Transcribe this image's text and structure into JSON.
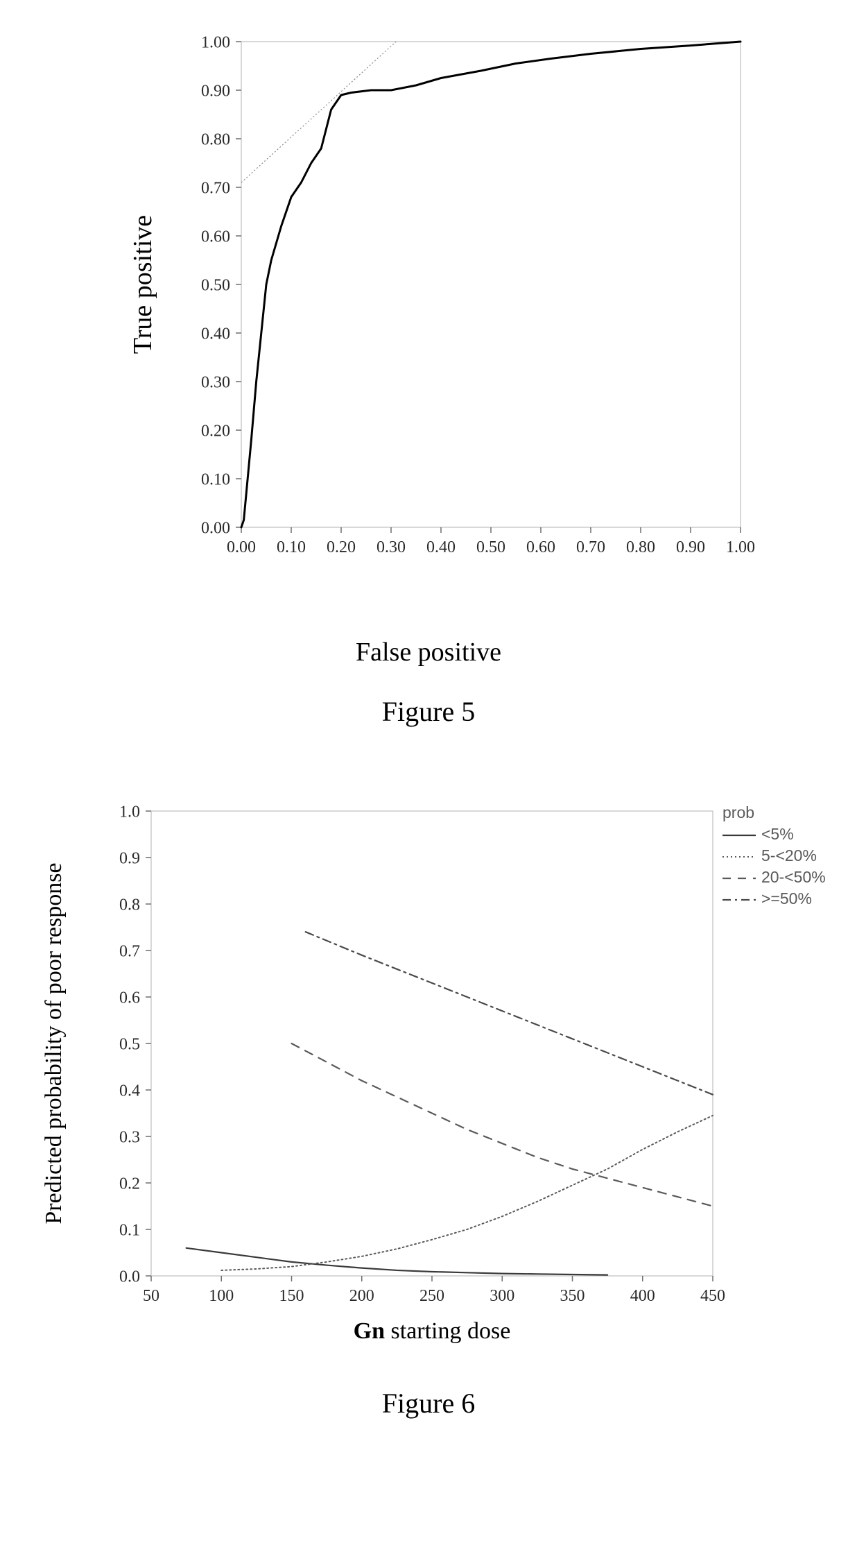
{
  "figure5": {
    "type": "line",
    "caption": "Figure 5",
    "xlabel": "False positive",
    "ylabel": "True positive",
    "xlim": [
      0.0,
      1.0
    ],
    "ylim": [
      0.0,
      1.0
    ],
    "xticks": [
      0.0,
      0.1,
      0.2,
      0.3,
      0.4,
      0.5,
      0.6,
      0.7,
      0.8,
      0.9,
      1.0
    ],
    "yticks": [
      0.0,
      0.1,
      0.2,
      0.3,
      0.4,
      0.5,
      0.6,
      0.7,
      0.8,
      0.9,
      1.0
    ],
    "xtick_labels": [
      "0.00",
      "0.10",
      "0.20",
      "0.30",
      "0.40",
      "0.50",
      "0.60",
      "0.70",
      "0.80",
      "0.90",
      "1.00"
    ],
    "ytick_labels": [
      "0.00",
      "0.10",
      "0.20",
      "0.30",
      "0.40",
      "0.50",
      "0.60",
      "0.70",
      "0.80",
      "0.90",
      "1.00"
    ],
    "background_color": "#ffffff",
    "frame_color": "#bfbfbf",
    "frame_width": 1.2,
    "tick_color": "#6e6e6e",
    "tick_len": 8,
    "tick_label_fontsize": 24,
    "axis_label_fontsize": 38,
    "roc": {
      "color": "#000000",
      "width": 3.0,
      "points": [
        [
          0.0,
          0.0
        ],
        [
          0.005,
          0.015
        ],
        [
          0.02,
          0.18
        ],
        [
          0.03,
          0.3
        ],
        [
          0.04,
          0.4
        ],
        [
          0.05,
          0.5
        ],
        [
          0.06,
          0.55
        ],
        [
          0.08,
          0.62
        ],
        [
          0.1,
          0.68
        ],
        [
          0.12,
          0.71
        ],
        [
          0.13,
          0.73
        ],
        [
          0.14,
          0.75
        ],
        [
          0.16,
          0.78
        ],
        [
          0.17,
          0.82
        ],
        [
          0.18,
          0.86
        ],
        [
          0.2,
          0.89
        ],
        [
          0.22,
          0.895
        ],
        [
          0.26,
          0.9
        ],
        [
          0.3,
          0.9
        ],
        [
          0.35,
          0.91
        ],
        [
          0.4,
          0.925
        ],
        [
          0.48,
          0.94
        ],
        [
          0.55,
          0.955
        ],
        [
          0.62,
          0.965
        ],
        [
          0.7,
          0.975
        ],
        [
          0.8,
          0.985
        ],
        [
          0.9,
          0.992
        ],
        [
          1.0,
          1.0
        ]
      ]
    },
    "tangent": {
      "color": "#8a8a8a",
      "width": 1.2,
      "dash": "2,3",
      "p1": [
        0.0,
        0.71
      ],
      "p2": [
        0.31,
        1.0
      ]
    }
  },
  "figure6": {
    "type": "line",
    "caption": "Figure 6",
    "xlabel_prefix_bold": "Gn",
    "xlabel_rest": " starting dose",
    "ylabel": "Predicted probability of poor response",
    "xlim": [
      50,
      450
    ],
    "ylim": [
      0.0,
      1.0
    ],
    "xticks": [
      50,
      100,
      150,
      200,
      250,
      300,
      350,
      400,
      450
    ],
    "yticks": [
      0.0,
      0.1,
      0.2,
      0.3,
      0.4,
      0.5,
      0.6,
      0.7,
      0.8,
      0.9,
      1.0
    ],
    "xtick_labels": [
      "50",
      "100",
      "150",
      "200",
      "250",
      "300",
      "350",
      "400",
      "450"
    ],
    "ytick_labels": [
      "0.0",
      "0.1",
      "0.2",
      "0.3",
      "0.4",
      "0.5",
      "0.6",
      "0.7",
      "0.8",
      "0.9",
      "1.0"
    ],
    "background_color": "#ffffff",
    "frame_color": "#bfbfbf",
    "frame_width": 1.2,
    "tick_color": "#6e6e6e",
    "tick_len": 8,
    "tick_label_fontsize": 24,
    "axis_label_fontsize": 34,
    "legend_title": "prob",
    "legend_fontsize": 23,
    "legend_color": "#5a5a5a",
    "series": [
      {
        "name": "<5%",
        "color": "#3a3a3a",
        "width": 2.2,
        "dash": null,
        "points": [
          [
            75,
            0.06
          ],
          [
            100,
            0.05
          ],
          [
            125,
            0.04
          ],
          [
            150,
            0.03
          ],
          [
            175,
            0.023
          ],
          [
            200,
            0.017
          ],
          [
            225,
            0.012
          ],
          [
            250,
            0.009
          ],
          [
            275,
            0.007
          ],
          [
            300,
            0.005
          ],
          [
            325,
            0.004
          ],
          [
            350,
            0.003
          ],
          [
            375,
            0.002
          ]
        ]
      },
      {
        "name": "5-<20%",
        "color": "#5a5a5a",
        "width": 2.0,
        "dash": "2,4",
        "points": [
          [
            100,
            0.012
          ],
          [
            125,
            0.015
          ],
          [
            150,
            0.02
          ],
          [
            175,
            0.03
          ],
          [
            200,
            0.042
          ],
          [
            225,
            0.058
          ],
          [
            250,
            0.078
          ],
          [
            275,
            0.1
          ],
          [
            300,
            0.128
          ],
          [
            325,
            0.16
          ],
          [
            350,
            0.195
          ],
          [
            375,
            0.23
          ],
          [
            400,
            0.272
          ],
          [
            425,
            0.31
          ],
          [
            450,
            0.345
          ]
        ]
      },
      {
        "name": "20-<50%",
        "color": "#5a5a5a",
        "width": 2.2,
        "dash": "12,10",
        "points": [
          [
            150,
            0.5
          ],
          [
            175,
            0.46
          ],
          [
            200,
            0.42
          ],
          [
            225,
            0.385
          ],
          [
            250,
            0.35
          ],
          [
            275,
            0.315
          ],
          [
            300,
            0.285
          ],
          [
            325,
            0.255
          ],
          [
            350,
            0.23
          ],
          [
            375,
            0.21
          ],
          [
            400,
            0.19
          ],
          [
            425,
            0.17
          ],
          [
            450,
            0.15
          ]
        ]
      },
      {
        "name": ">=50%",
        "color": "#4a4a4a",
        "width": 2.2,
        "dash": "12,6,3,6",
        "points": [
          [
            160,
            0.74
          ],
          [
            180,
            0.715
          ],
          [
            200,
            0.69
          ],
          [
            225,
            0.66
          ],
          [
            250,
            0.63
          ],
          [
            275,
            0.6
          ],
          [
            300,
            0.57
          ],
          [
            325,
            0.54
          ],
          [
            350,
            0.51
          ],
          [
            375,
            0.48
          ],
          [
            400,
            0.45
          ],
          [
            425,
            0.42
          ],
          [
            450,
            0.39
          ]
        ]
      }
    ]
  }
}
